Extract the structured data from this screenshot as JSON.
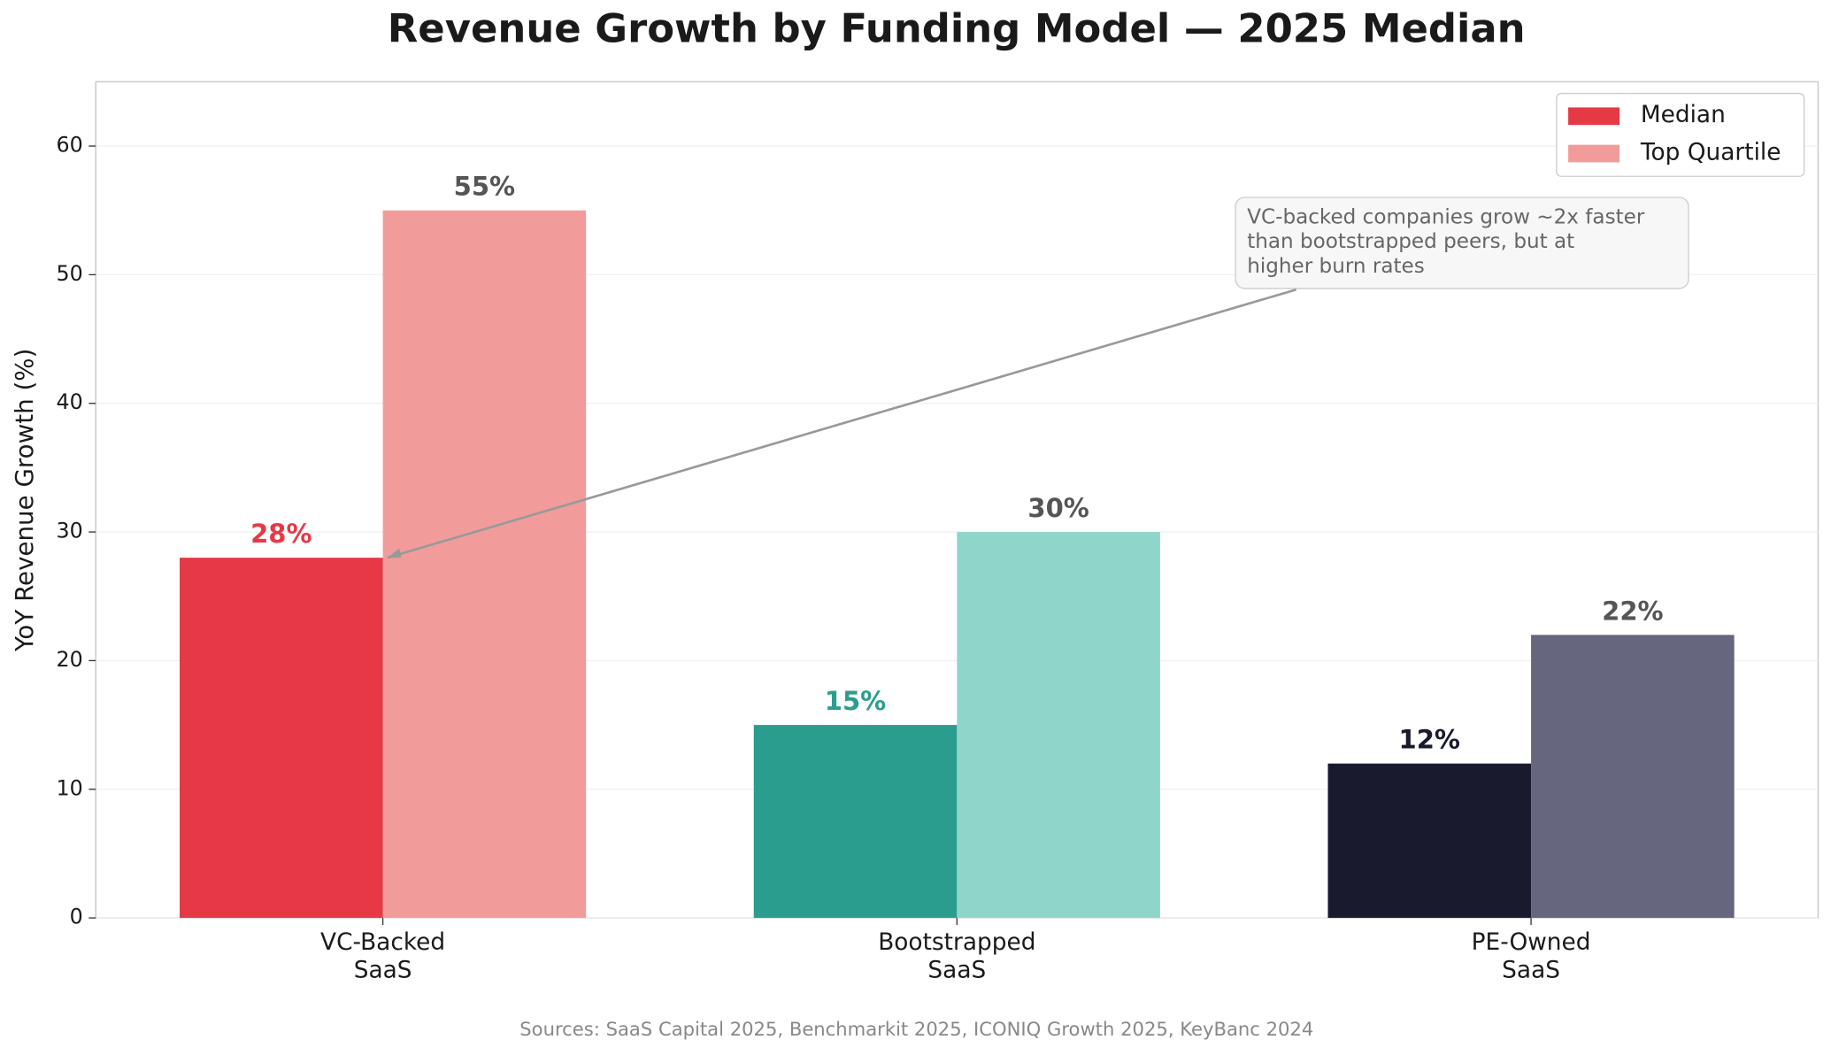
{
  "chart_data": {
    "type": "bar",
    "title": "Revenue Growth by Funding Model — 2025 Median",
    "ylabel": "YoY Revenue Growth (%)",
    "categories": [
      "VC-Backed\nSaaS",
      "Bootstrapped\nSaaS",
      "PE-Owned\nSaaS"
    ],
    "series": [
      {
        "name": "Median",
        "color": "#e63946",
        "colors": [
          "#e63946",
          "#2a9d8f",
          "#1a1a2e"
        ],
        "values": [
          28,
          15,
          12
        ],
        "value_labels": [
          "28%",
          "15%",
          "12%"
        ],
        "value_label_colors": [
          "#e63946",
          "#2a9d8f",
          "#1a1a2e"
        ]
      },
      {
        "name": "Top Quartile",
        "color": "#f19c9b",
        "colors": [
          "#f19c9b",
          "#90d5ca",
          "#67667f"
        ],
        "values": [
          55,
          30,
          22
        ],
        "value_labels": [
          "55%",
          "30%",
          "22%"
        ],
        "value_label_colors": [
          "#555555",
          "#555555",
          "#555555"
        ]
      }
    ],
    "ylim": [
      0,
      65
    ],
    "yticks": [
      0,
      10,
      20,
      30,
      40,
      50,
      60
    ],
    "grid": true,
    "legend": "upper right",
    "annotation": {
      "text": "VC-backed companies grow ~2x faster\nthan bootstrapped peers, but at\nhigher burn rates"
    },
    "source": "Sources: SaaS Capital 2025, Benchmarkit 2025, ICONIQ Growth 2025, KeyBanc 2024"
  }
}
